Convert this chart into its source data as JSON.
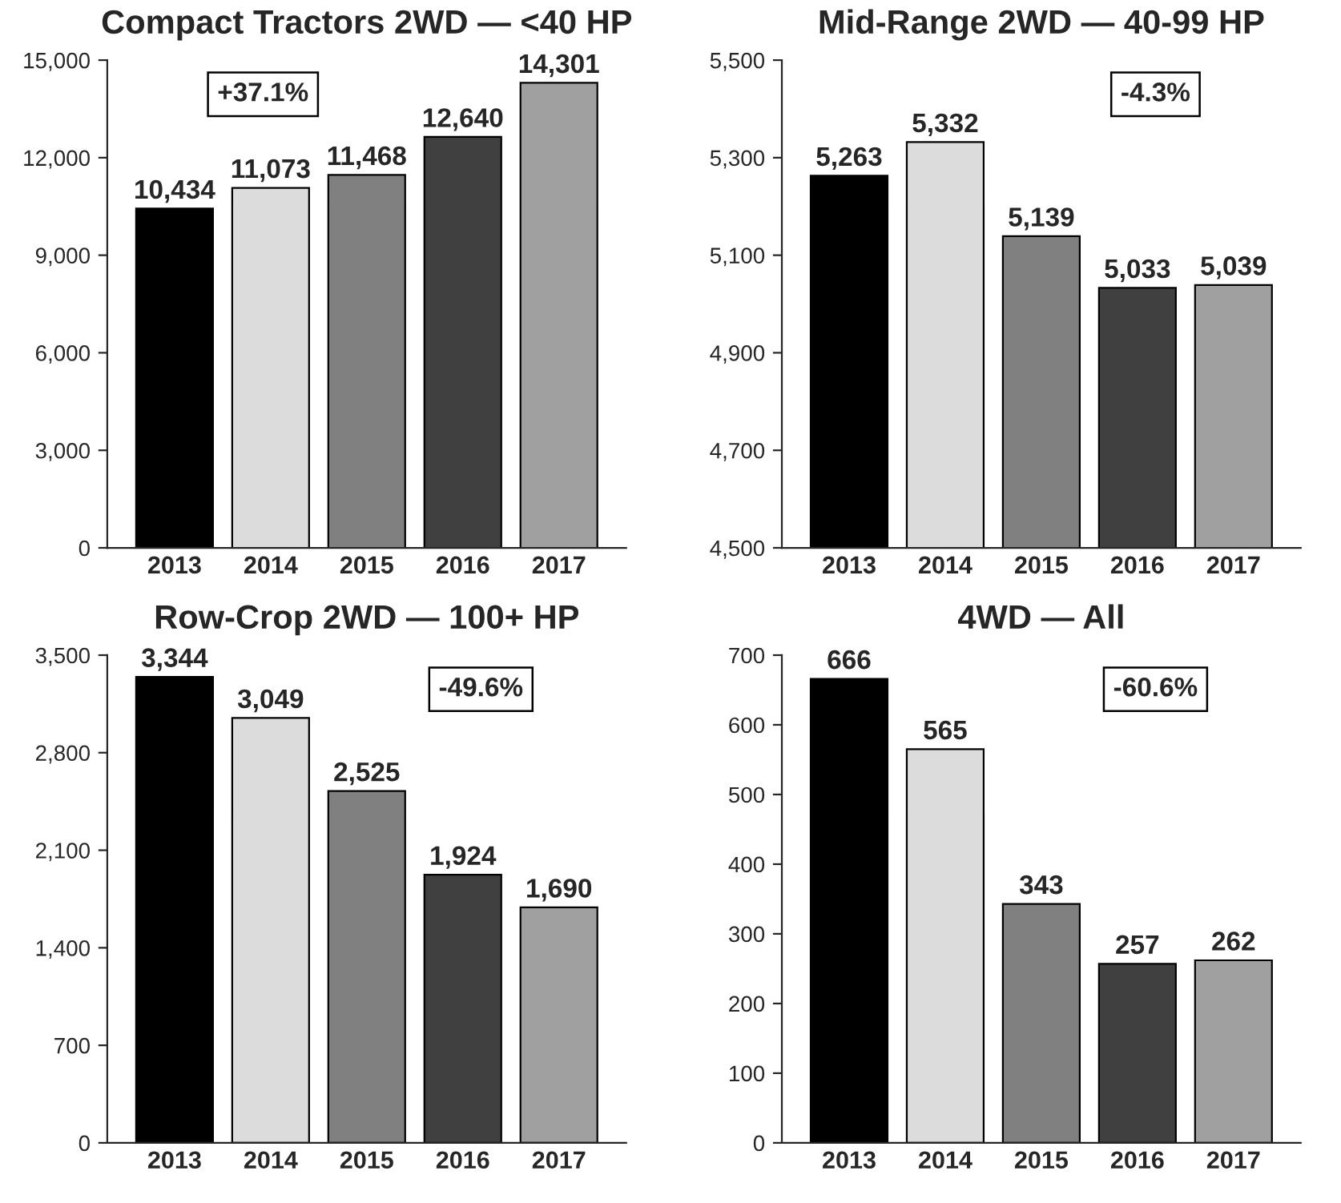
{
  "chart_data": [
    {
      "type": "bar",
      "title": "Compact Tractors 2WD — <40 HP",
      "categories": [
        "2013",
        "2014",
        "2015",
        "2016",
        "2017"
      ],
      "values": [
        10434,
        11073,
        11468,
        12640,
        14301
      ],
      "colors": [
        "#000000",
        "#dcdcdc",
        "#808080",
        "#404040",
        "#a0a0a0"
      ],
      "value_labels": [
        "10,434",
        "11,073",
        "11,468",
        "12,640",
        "14,301"
      ],
      "ylim": [
        0,
        15000
      ],
      "yticks": [
        0,
        {
          "value": 3000,
          "label": "3,000"
        },
        {
          "value": 6000,
          "label": "6,000"
        },
        {
          "value": 9000,
          "label": "9,000"
        },
        {
          "value": 12000,
          "label": "12,000"
        },
        {
          "value": 15000,
          "label": "15,000"
        }
      ],
      "annotations": [
        "+37.1%"
      ],
      "grid": false,
      "legend": false
    },
    {
      "type": "bar",
      "title": "Mid-Range 2WD — 40-99 HP",
      "categories": [
        "2013",
        "2014",
        "2015",
        "2016",
        "2017"
      ],
      "values": [
        5263,
        5332,
        5139,
        5033,
        5039
      ],
      "colors": [
        "#000000",
        "#dcdcdc",
        "#808080",
        "#404040",
        "#a0a0a0"
      ],
      "value_labels": [
        "5,263",
        "5,332",
        "5,139",
        "5,033",
        "5,039"
      ],
      "ylim": [
        4500,
        5500
      ],
      "yticks": [
        {
          "value": 4500,
          "label": "4,500"
        },
        {
          "value": 4700,
          "label": "4,700"
        },
        {
          "value": 4900,
          "label": "4,900"
        },
        {
          "value": 5100,
          "label": "5,100"
        },
        {
          "value": 5300,
          "label": "5,300"
        },
        {
          "value": 5500,
          "label": "5,500"
        }
      ],
      "annotations": [
        "-4.3%"
      ],
      "grid": false,
      "legend": false
    },
    {
      "type": "bar",
      "title": "Row-Crop 2WD — 100+ HP",
      "categories": [
        "2013",
        "2014",
        "2015",
        "2016",
        "2017"
      ],
      "values": [
        3344,
        3049,
        2525,
        1924,
        1690
      ],
      "colors": [
        "#000000",
        "#dcdcdc",
        "#808080",
        "#404040",
        "#a0a0a0"
      ],
      "value_labels": [
        "3,344",
        "3,049",
        "2,525",
        "1,924",
        "1,690"
      ],
      "ylim": [
        0,
        3500
      ],
      "yticks": [
        0,
        700,
        {
          "value": 1400,
          "label": "1,400"
        },
        {
          "value": 2100,
          "label": "2,100"
        },
        {
          "value": 2800,
          "label": "2,800"
        },
        {
          "value": 3500,
          "label": "3,500"
        }
      ],
      "annotations": [
        "-49.6%"
      ],
      "grid": false,
      "legend": false
    },
    {
      "type": "bar",
      "title": "4WD — All",
      "categories": [
        "2013",
        "2014",
        "2015",
        "2016",
        "2017"
      ],
      "values": [
        666,
        565,
        343,
        257,
        262
      ],
      "colors": [
        "#000000",
        "#dcdcdc",
        "#808080",
        "#404040",
        "#a0a0a0"
      ],
      "value_labels": [
        "666",
        "565",
        "343",
        "257",
        "262"
      ],
      "ylim": [
        0,
        700
      ],
      "yticks": [
        0,
        100,
        200,
        300,
        400,
        500,
        600,
        700
      ],
      "annotations": [
        "-60.6%"
      ],
      "grid": false,
      "legend": false
    }
  ]
}
